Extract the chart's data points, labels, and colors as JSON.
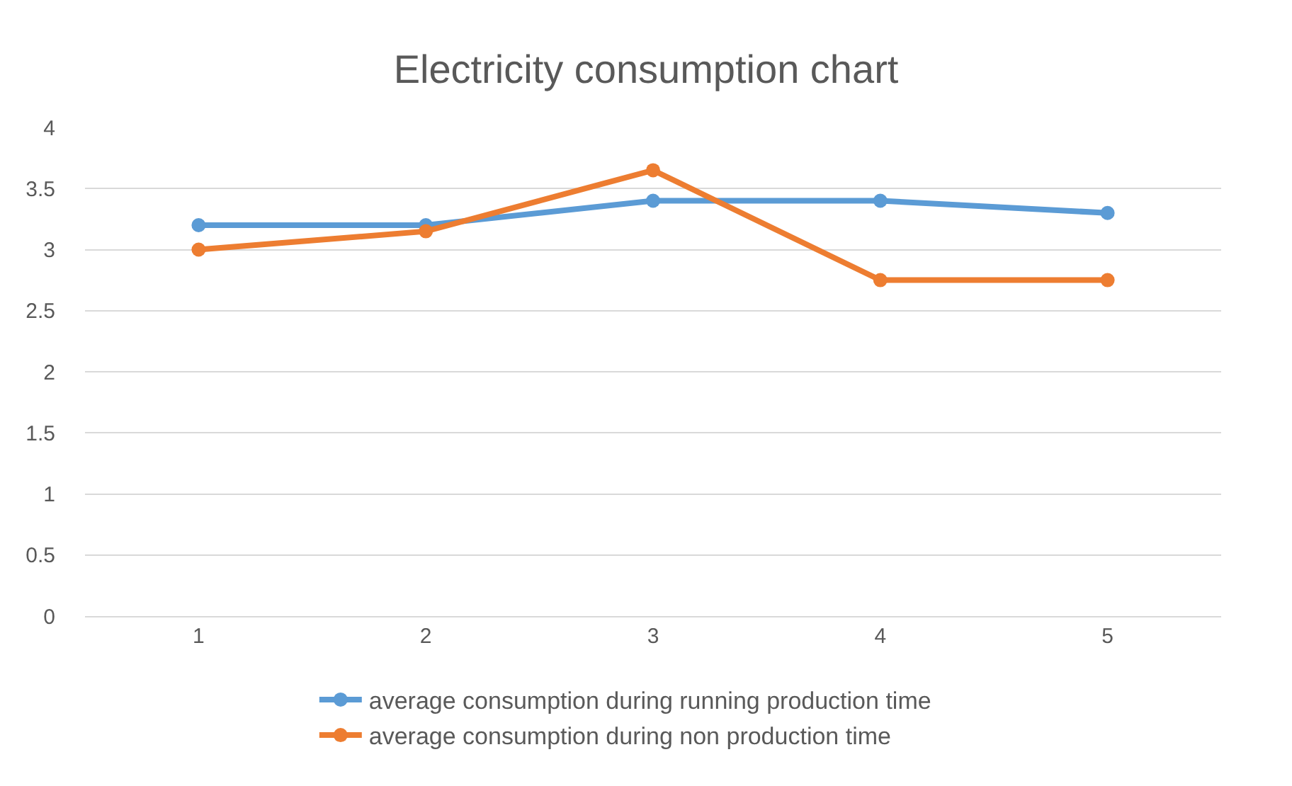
{
  "chart_data": {
    "type": "line",
    "title": "Electricity consumption chart",
    "categories": [
      "1",
      "2",
      "3",
      "4",
      "5"
    ],
    "series": [
      {
        "name": "average consumption during running production time",
        "color": "#5b9bd5",
        "values": [
          3.2,
          3.2,
          3.4,
          3.4,
          3.3
        ]
      },
      {
        "name": "average consumption during non production time",
        "color": "#ed7d31",
        "values": [
          3.0,
          3.15,
          3.65,
          2.75,
          2.75
        ]
      }
    ],
    "ylim": [
      0,
      4
    ],
    "yticks": [
      0,
      0.5,
      1,
      1.5,
      2,
      2.5,
      3,
      3.5,
      4
    ],
    "grid": "y",
    "legend": "bottom",
    "marker": "circle",
    "line_style": "solid"
  }
}
